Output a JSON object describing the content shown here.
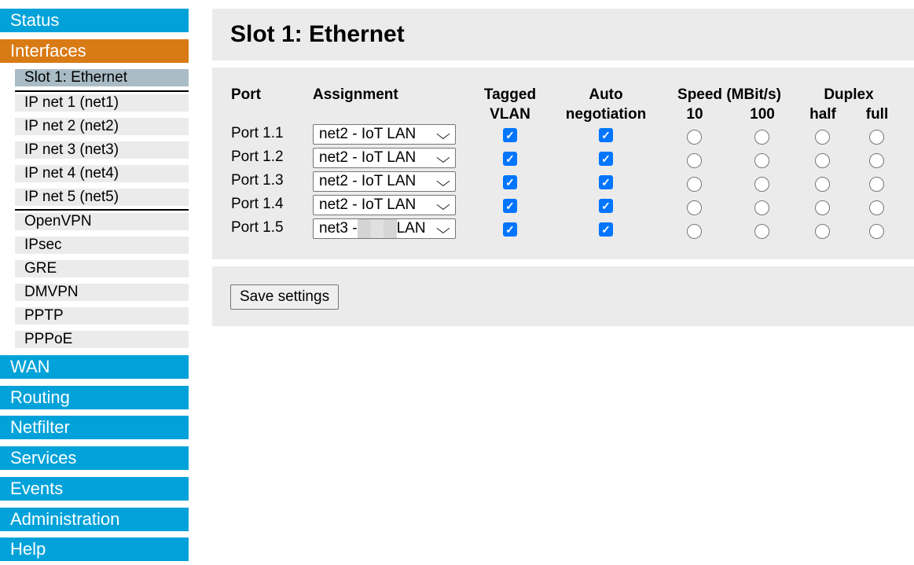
{
  "sidebar": {
    "top": [
      {
        "label": "Status"
      },
      {
        "label": "Interfaces"
      }
    ],
    "sub": [
      {
        "label": "Slot 1: Ethernet"
      },
      {
        "label": "IP net 1 (net1)"
      },
      {
        "label": "IP net 2 (net2)"
      },
      {
        "label": "IP net 3 (net3)"
      },
      {
        "label": "IP net 4 (net4)"
      },
      {
        "label": "IP net 5 (net5)"
      },
      {
        "label": "OpenVPN"
      },
      {
        "label": "IPsec"
      },
      {
        "label": "GRE"
      },
      {
        "label": "DMVPN"
      },
      {
        "label": "PPTP"
      },
      {
        "label": "PPPoE"
      }
    ],
    "bottom": [
      {
        "label": "WAN"
      },
      {
        "label": "Routing"
      },
      {
        "label": "Netfilter"
      },
      {
        "label": "Services"
      },
      {
        "label": "Events"
      },
      {
        "label": "Administration"
      },
      {
        "label": "Help"
      }
    ]
  },
  "colors": {
    "nav": "#00a2d9",
    "active_nav": "#d97b15",
    "active_sub": "#a9bcc5",
    "panel": "#ebebeb",
    "checkbox": "#0075ff"
  },
  "main": {
    "title": "Slot 1: Ethernet",
    "headers": {
      "port": "Port",
      "assignment": "Assignment",
      "tagged_1": "Tagged",
      "tagged_2": "VLAN",
      "auto_1": "Auto",
      "auto_2": "negotiation",
      "speed": "Speed (MBit/s)",
      "s10": "10",
      "s100": "100",
      "duplex": "Duplex",
      "half": "half",
      "full": "full"
    },
    "rows": [
      {
        "port": "Port 1.1",
        "assignment": "net2 - IoT LAN",
        "tagged": true,
        "auto": true
      },
      {
        "port": "Port 1.2",
        "assignment": "net2 - IoT LAN",
        "tagged": true,
        "auto": true
      },
      {
        "port": "Port 1.3",
        "assignment": "net2 - IoT LAN",
        "tagged": true,
        "auto": true
      },
      {
        "port": "Port 1.4",
        "assignment": "net2 - IoT LAN",
        "tagged": true,
        "auto": true
      },
      {
        "port": "Port 1.5",
        "assignment_prefix": "net3 -",
        "assignment_suffix": "LAN",
        "redacted": true,
        "tagged": true,
        "auto": true
      }
    ],
    "save_label": "Save settings"
  }
}
